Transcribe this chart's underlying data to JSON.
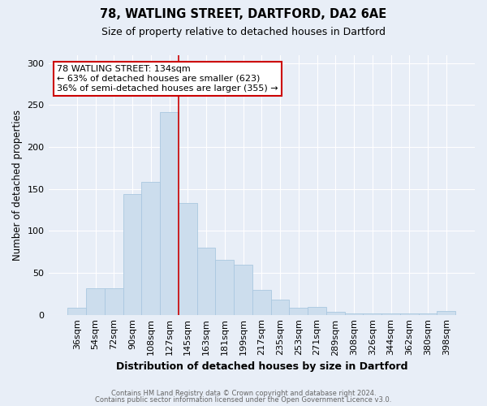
{
  "title1": "78, WATLING STREET, DARTFORD, DA2 6AE",
  "title2": "Size of property relative to detached houses in Dartford",
  "xlabel": "Distribution of detached houses by size in Dartford",
  "ylabel": "Number of detached properties",
  "categories": [
    "36sqm",
    "54sqm",
    "72sqm",
    "90sqm",
    "108sqm",
    "127sqm",
    "145sqm",
    "163sqm",
    "181sqm",
    "199sqm",
    "217sqm",
    "235sqm",
    "253sqm",
    "271sqm",
    "289sqm",
    "308sqm",
    "326sqm",
    "344sqm",
    "362sqm",
    "380sqm",
    "398sqm"
  ],
  "values": [
    8,
    32,
    32,
    144,
    158,
    242,
    133,
    80,
    65,
    60,
    30,
    18,
    8,
    9,
    3,
    2,
    2,
    2,
    2,
    2,
    4
  ],
  "bar_color": "#ccdded",
  "bar_edge_color": "#aac8e0",
  "property_line_x": 5.5,
  "annotation_line1": "78 WATLING STREET: 134sqm",
  "annotation_line2": "← 63% of detached houses are smaller (623)",
  "annotation_line3": "36% of semi-detached houses are larger (355) →",
  "annotation_box_color": "#ffffff",
  "annotation_box_edge": "#cc0000",
  "vline_color": "#cc0000",
  "ylim": [
    0,
    310
  ],
  "yticks": [
    0,
    50,
    100,
    150,
    200,
    250,
    300
  ],
  "footer1": "Contains HM Land Registry data © Crown copyright and database right 2024.",
  "footer2": "Contains public sector information licensed under the Open Government Licence v3.0.",
  "background_color": "#e8eef7",
  "title1_fontsize": 10.5,
  "title2_fontsize": 9,
  "xlabel_fontsize": 9,
  "ylabel_fontsize": 8.5,
  "tick_fontsize": 8,
  "annotation_fontsize": 8,
  "footer_fontsize": 6
}
